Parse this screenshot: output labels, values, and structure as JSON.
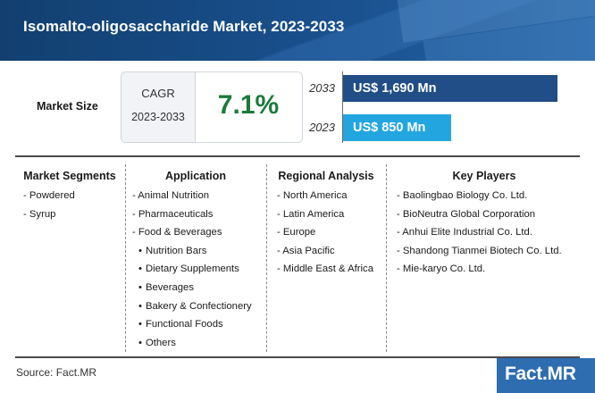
{
  "header": {
    "title": "Isomalto-oligosaccharide Market, 2023-2033"
  },
  "market_size": {
    "label": "Market Size",
    "cagr_label": "CAGR",
    "cagr_period": "2023-2033",
    "cagr_value": "7.1%",
    "bars": [
      {
        "year": "2033",
        "value_label": "US$ 1,690 Mn",
        "value": 1690,
        "color": "#214e87"
      },
      {
        "year": "2023",
        "value_label": "US$ 850 Mn",
        "value": 850,
        "color": "#23a6e0"
      }
    ]
  },
  "columns": {
    "segments": {
      "title": "Market Segments",
      "items": [
        "- Powdered",
        "- Syrup"
      ]
    },
    "application": {
      "title": "Application",
      "items": [
        "- Animal Nutrition",
        "- Pharmaceuticals",
        "- Food & Beverages",
        "Nutrition Bars",
        "Dietary Supplements",
        "Beverages",
        "Bakery & Confectionery",
        "Functional Foods",
        "Others"
      ]
    },
    "regional": {
      "title": "Regional Analysis",
      "items": [
        "- North America",
        "- Latin America",
        "- Europe",
        "- Asia Pacific",
        "- Middle East & Africa"
      ]
    },
    "players": {
      "title": "Key Players",
      "items": [
        "- Baolingbao Biology Co. Ltd.",
        "- BioNeutra Global Corporation",
        "- Anhui Elite Industrial Co. Ltd.",
        "- Shandong Tianmei Biotech Co. Ltd.",
        "- Mie-karyo Co. Ltd."
      ]
    }
  },
  "footer": {
    "source": "Source: Fact.MR",
    "logo": "Fact.MR"
  },
  "colors": {
    "header": "#14487d",
    "cagr": "#1b7a3a",
    "bar_2033": "#214e87",
    "bar_2023": "#23a6e0"
  }
}
